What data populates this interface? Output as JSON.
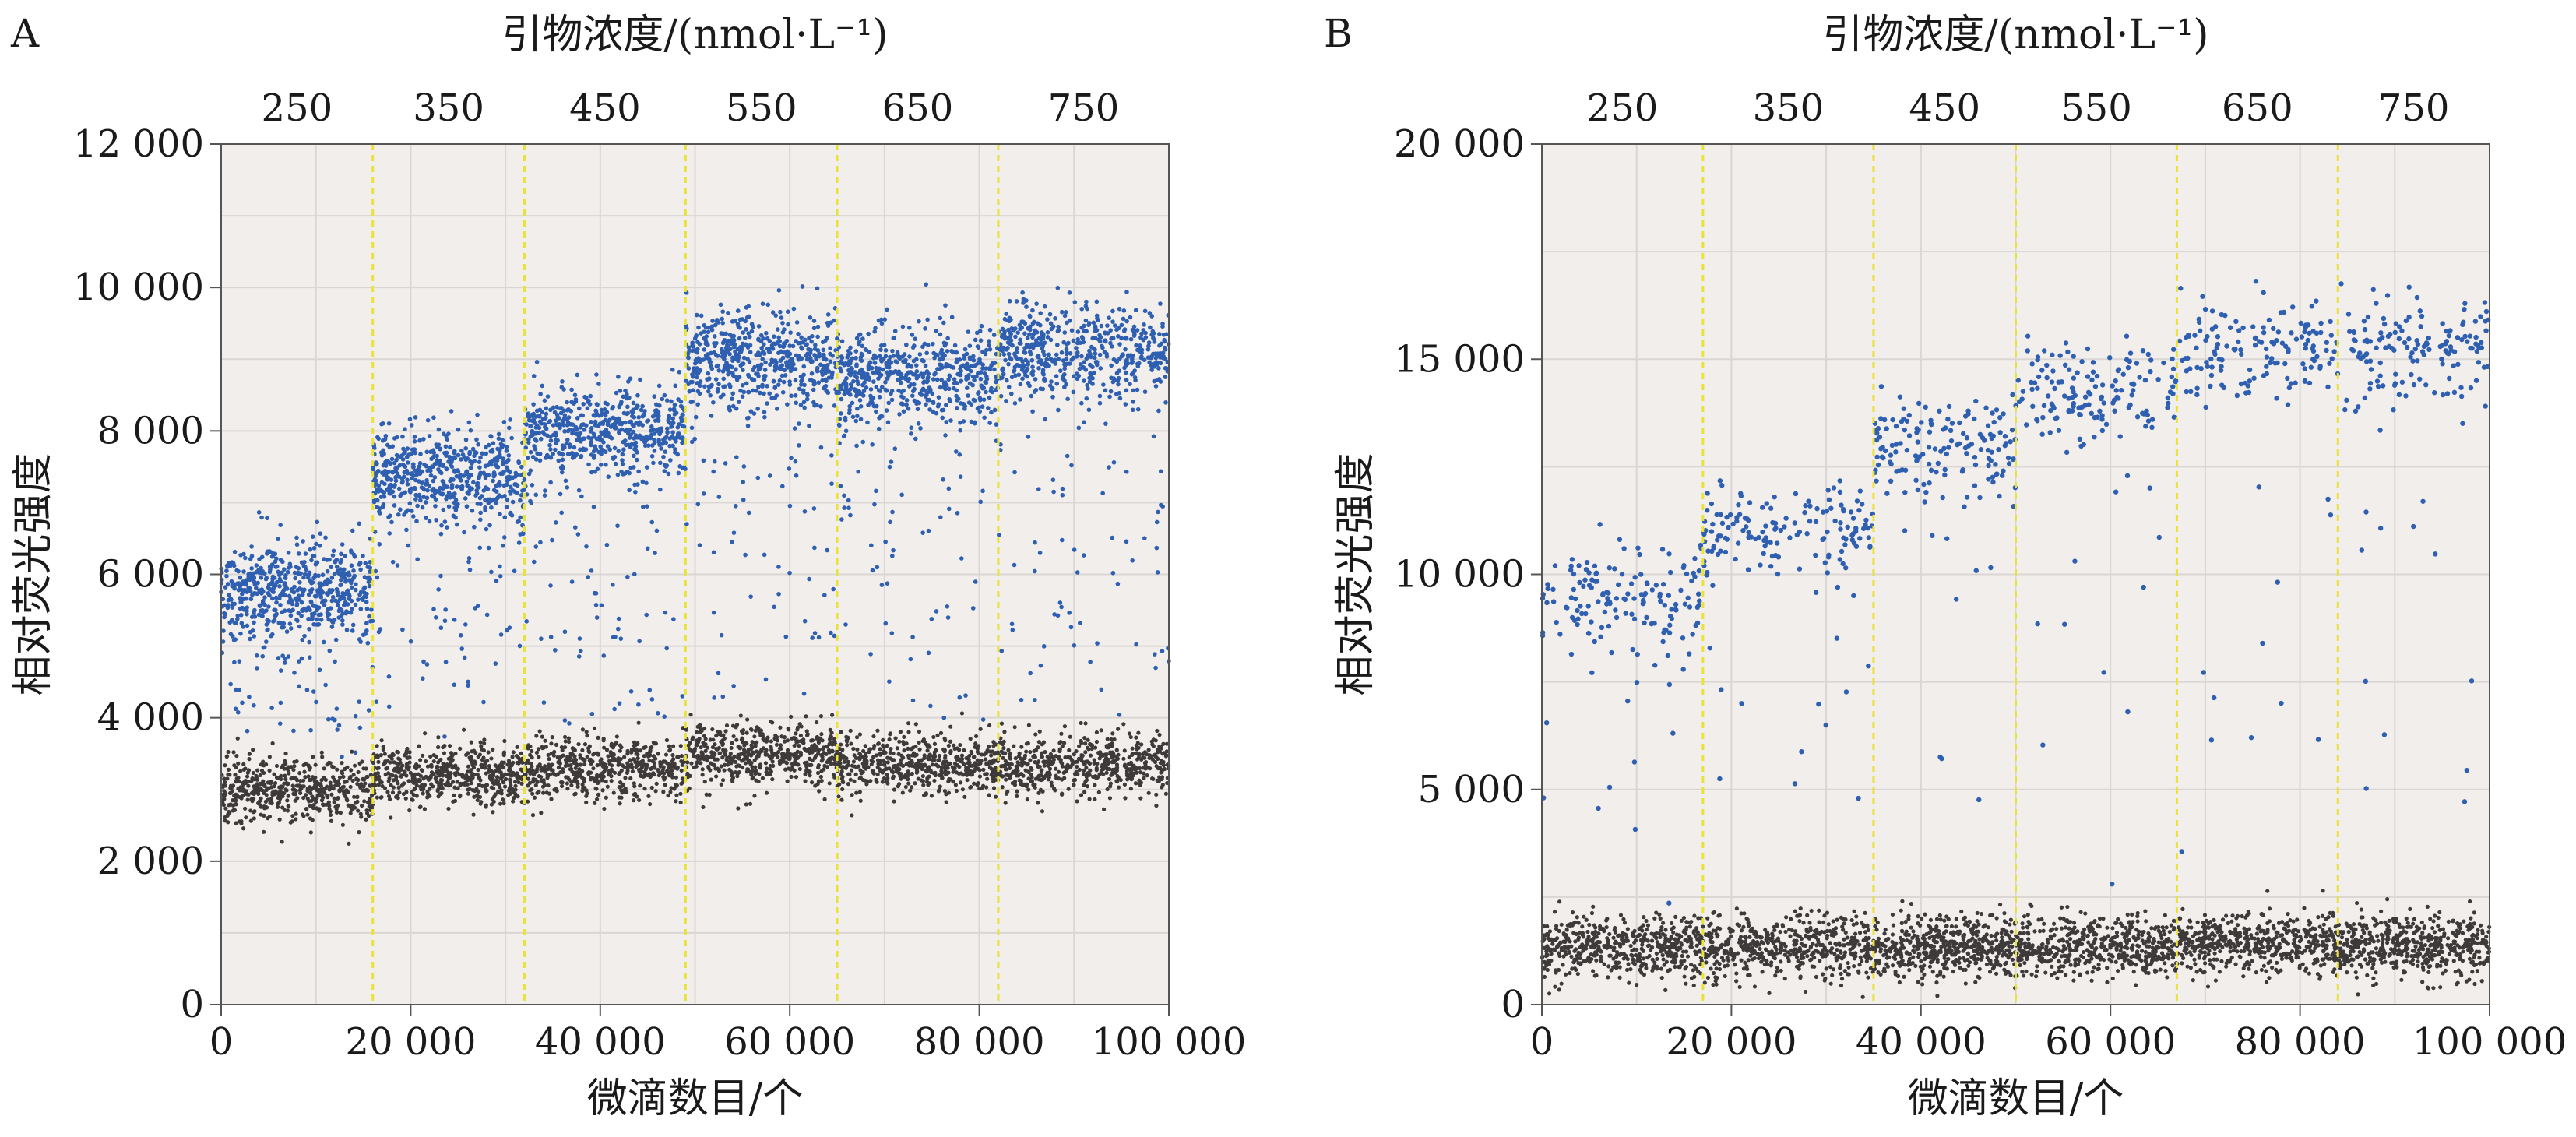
{
  "figure": {
    "colors": {
      "positive": "#2f5fb0",
      "negative": "#3e3a3a",
      "plot_bg": "#f1eeec",
      "grid": "#d9d6d4",
      "divider": "#e8e23a",
      "axis": "#555555"
    }
  },
  "chart_data": [
    {
      "panel": "A",
      "type": "scatter",
      "title": "",
      "xlabel": "微滴数目/个",
      "ylabel": "相对荧光强度",
      "top_label": "引物浓度/(nmol·L⁻¹)",
      "xlim": [
        0,
        100000
      ],
      "ylim": [
        0,
        12000
      ],
      "x_ticks": [
        0,
        20000,
        40000,
        60000,
        80000,
        100000
      ],
      "x_tick_labels": [
        "0",
        "20 000",
        "40 000",
        "60 000",
        "80 000",
        "100 000"
      ],
      "y_ticks": [
        0,
        2000,
        4000,
        6000,
        8000,
        10000,
        12000
      ],
      "y_tick_labels": [
        "0",
        "2 000",
        "4 000",
        "6 000",
        "8 000",
        "10 000",
        "12 000"
      ],
      "top_ticks": [
        "250",
        "350",
        "450",
        "550",
        "650",
        "750"
      ],
      "segment_boundaries": [
        16000,
        32000,
        49000,
        65000,
        82000
      ],
      "segments": [
        {
          "concentration": "250",
          "x_range": [
            0,
            16000
          ],
          "positive_mean": 5800,
          "negative_mean": 3000
        },
        {
          "concentration": "350",
          "x_range": [
            16000,
            32000
          ],
          "positive_mean": 7400,
          "negative_mean": 3200
        },
        {
          "concentration": "450",
          "x_range": [
            32000,
            49000
          ],
          "positive_mean": 8000,
          "negative_mean": 3300
        },
        {
          "concentration": "550",
          "x_range": [
            49000,
            65000
          ],
          "positive_mean": 9000,
          "negative_mean": 3500
        },
        {
          "concentration": "650",
          "x_range": [
            65000,
            82000
          ],
          "positive_mean": 8800,
          "negative_mean": 3350
        },
        {
          "concentration": "750",
          "x_range": [
            82000,
            100000
          ],
          "positive_mean": 9100,
          "negative_mean": 3350
        }
      ]
    },
    {
      "panel": "B",
      "type": "scatter",
      "title": "",
      "xlabel": "微滴数目/个",
      "ylabel": "相对荧光强度",
      "top_label": "引物浓度/(nmol·L⁻¹)",
      "xlim": [
        0,
        100000
      ],
      "ylim": [
        0,
        20000
      ],
      "x_ticks": [
        0,
        20000,
        40000,
        60000,
        80000,
        100000
      ],
      "x_tick_labels": [
        "0",
        "20 000",
        "40 000",
        "60 000",
        "80 000",
        "100 000"
      ],
      "y_ticks": [
        0,
        5000,
        10000,
        15000,
        20000
      ],
      "y_tick_labels": [
        "0",
        "5 000",
        "10 000",
        "15 000",
        "20 000"
      ],
      "top_ticks": [
        "250",
        "350",
        "450",
        "550",
        "650",
        "750"
      ],
      "segment_boundaries": [
        17000,
        35000,
        50000,
        67000,
        84000
      ],
      "segments": [
        {
          "concentration": "250",
          "x_range": [
            0,
            17000
          ],
          "positive_mean": 9400,
          "negative_mean": 1350
        },
        {
          "concentration": "350",
          "x_range": [
            17000,
            35000
          ],
          "positive_mean": 11000,
          "negative_mean": 1350
        },
        {
          "concentration": "450",
          "x_range": [
            35000,
            50000
          ],
          "positive_mean": 13000,
          "negative_mean": 1350
        },
        {
          "concentration": "550",
          "x_range": [
            50000,
            67000
          ],
          "positive_mean": 14300,
          "negative_mean": 1350
        },
        {
          "concentration": "650",
          "x_range": [
            67000,
            84000
          ],
          "positive_mean": 15200,
          "negative_mean": 1400
        },
        {
          "concentration": "750",
          "x_range": [
            84000,
            100000
          ],
          "positive_mean": 15300,
          "negative_mean": 1350
        }
      ]
    }
  ]
}
